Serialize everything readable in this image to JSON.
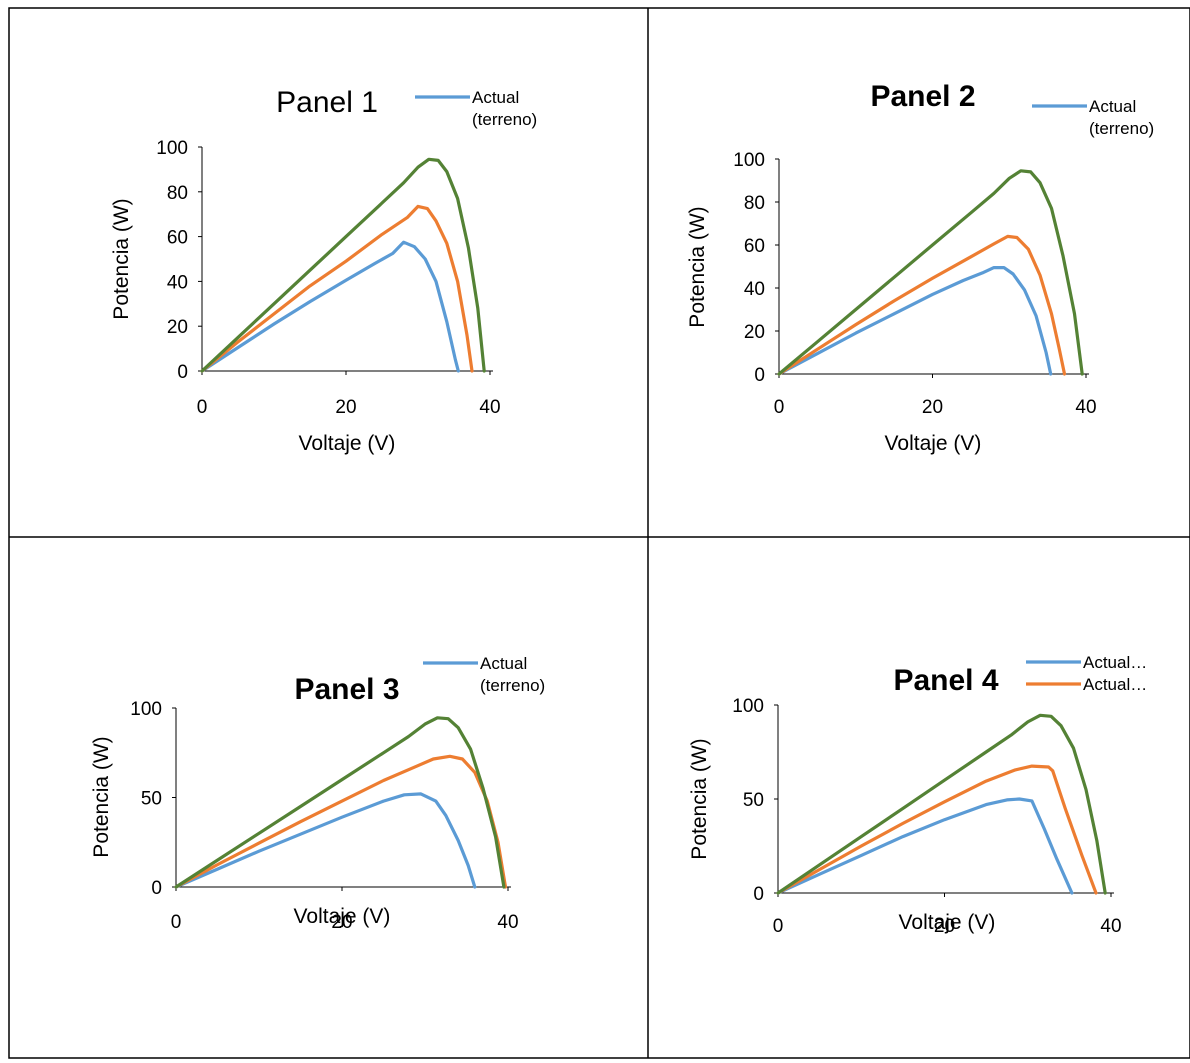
{
  "colors": {
    "blue": "#5B9BD5",
    "orange": "#ED7D31",
    "green": "#548235",
    "axis": "#000000",
    "border": "#000000"
  },
  "chart_data": [
    {
      "type": "line",
      "title": "Panel 1",
      "title_bold": false,
      "xlabel": "Voltaje (V)",
      "ylabel": "Potencia (W)",
      "xlim": [
        0,
        40
      ],
      "ylim": [
        0,
        100
      ],
      "xticks": [
        "0",
        "20",
        "40"
      ],
      "yticks": [
        "0",
        "20",
        "40",
        "60",
        "80",
        "100"
      ],
      "legend": [
        {
          "lines": [
            "Actual",
            "(terreno)"
          ],
          "color": "#5B9BD5"
        }
      ],
      "series": [
        {
          "color": "#5B9BD5",
          "x": [
            0,
            5,
            10,
            15,
            20,
            24,
            26.5,
            28,
            29.5,
            31,
            32.5,
            34,
            35.2,
            35.6
          ],
          "y": [
            0,
            10.5,
            21,
            31,
            40.5,
            48,
            52.5,
            57.5,
            55.5,
            50,
            40,
            22,
            5,
            0
          ]
        },
        {
          "color": "#ED7D31",
          "x": [
            0,
            5,
            10,
            15,
            20,
            25,
            28.5,
            30,
            31.3,
            32.5,
            34,
            35.5,
            36.8,
            37.5
          ],
          "y": [
            0,
            13,
            25.5,
            38,
            49,
            61,
            68.5,
            73.5,
            72.5,
            67,
            57,
            40,
            16,
            0
          ]
        },
        {
          "color": "#548235",
          "x": [
            0,
            5,
            10,
            15,
            20,
            25,
            28,
            30,
            31.5,
            32.8,
            34,
            35.5,
            37,
            38.3,
            39.2
          ],
          "y": [
            0,
            15,
            30,
            45,
            60,
            75,
            84,
            91,
            94.5,
            94,
            89,
            77,
            55,
            28,
            0
          ]
        }
      ]
    },
    {
      "type": "line",
      "title": "Panel 2",
      "title_bold": true,
      "xlabel": "Voltaje (V)",
      "ylabel": "Potencia (W)",
      "xlim": [
        0,
        40
      ],
      "ylim": [
        0,
        100
      ],
      "xticks": [
        "0",
        "20",
        "40"
      ],
      "yticks": [
        "0",
        "20",
        "40",
        "60",
        "80",
        "100"
      ],
      "legend": [
        {
          "lines": [
            "Actual",
            "(terreno)"
          ],
          "color": "#5B9BD5"
        }
      ],
      "series": [
        {
          "color": "#5B9BD5",
          "x": [
            0,
            5,
            10,
            15,
            20,
            24,
            26.5,
            28,
            29.3,
            30.5,
            32,
            33.5,
            34.8,
            35.4
          ],
          "y": [
            0,
            9.5,
            19,
            28,
            37,
            43.5,
            47,
            49.5,
            49.5,
            46.5,
            39,
            27,
            10,
            0
          ]
        },
        {
          "color": "#ED7D31",
          "x": [
            0,
            5,
            10,
            15,
            20,
            25,
            28,
            29.8,
            31,
            32.5,
            34,
            35.5,
            36.5,
            37.2
          ],
          "y": [
            0,
            11.5,
            23,
            34,
            44.5,
            54.5,
            60.5,
            64,
            63.5,
            58,
            46,
            28,
            12,
            0
          ]
        },
        {
          "color": "#548235",
          "x": [
            0,
            5,
            10,
            15,
            20,
            25,
            28,
            30,
            31.5,
            32.8,
            34,
            35.5,
            37,
            38.5,
            39.5
          ],
          "y": [
            0,
            15,
            30,
            45,
            60,
            75,
            84,
            91,
            94.5,
            94,
            89,
            77,
            55,
            28,
            0
          ]
        }
      ]
    },
    {
      "type": "line",
      "title": "Panel 3",
      "title_bold": true,
      "xlabel": "Voltaje (V)",
      "ylabel": "Potencia (W)",
      "xlim": [
        0,
        40
      ],
      "ylim": [
        0,
        100
      ],
      "xticks": [
        "0",
        "20",
        "40"
      ],
      "yticks": [
        "0",
        "50",
        "100"
      ],
      "legend": [
        {
          "lines": [
            "Actual",
            "(terreno)"
          ],
          "color": "#5B9BD5"
        }
      ],
      "series": [
        {
          "color": "#5B9BD5",
          "x": [
            0,
            5,
            10,
            15,
            20,
            25,
            27.5,
            29.5,
            31.3,
            32.5,
            34,
            35.2,
            36
          ],
          "y": [
            0,
            10,
            20,
            29.5,
            39,
            48,
            51.5,
            52,
            48,
            40,
            26,
            12,
            0
          ]
        },
        {
          "color": "#ED7D31",
          "x": [
            0,
            5,
            10,
            15,
            20,
            25,
            29,
            31,
            33,
            34.5,
            36,
            37.5,
            38.8,
            39.7
          ],
          "y": [
            0,
            12.5,
            24.5,
            36.5,
            48,
            59.5,
            67.5,
            71.5,
            73,
            71.5,
            64,
            48,
            25,
            0
          ]
        },
        {
          "color": "#548235",
          "x": [
            0,
            5,
            10,
            15,
            20,
            25,
            28,
            30,
            31.5,
            32.8,
            34,
            35.5,
            37,
            38.5,
            39.5
          ],
          "y": [
            0,
            15,
            30,
            45,
            60,
            75,
            84,
            91,
            94.5,
            94,
            89,
            77,
            55,
            28,
            0
          ]
        }
      ]
    },
    {
      "type": "line",
      "title": "Panel 4",
      "title_bold": true,
      "xlabel": "Voltaje (V)",
      "ylabel": "Potencia (W)",
      "xlim": [
        0,
        40
      ],
      "ylim": [
        0,
        100
      ],
      "xticks": [
        "0",
        "20",
        "40"
      ],
      "yticks": [
        "0",
        "50",
        "100"
      ],
      "legend": [
        {
          "lines": [
            "Actual…"
          ],
          "color": "#5B9BD5"
        },
        {
          "lines": [
            "Actual…"
          ],
          "color": "#ED7D31"
        }
      ],
      "series": [
        {
          "color": "#5B9BD5",
          "x": [
            0,
            5,
            10,
            15,
            20,
            25,
            27.5,
            29,
            30.5,
            32,
            33.5,
            35.3
          ],
          "y": [
            0,
            10,
            20,
            30,
            39,
            47,
            49.5,
            50,
            49,
            34,
            18,
            0
          ]
        },
        {
          "color": "#ED7D31",
          "x": [
            0,
            5,
            10,
            15,
            20,
            25,
            28.5,
            30.5,
            32.5,
            33,
            34.5,
            36.5,
            38.2
          ],
          "y": [
            0,
            12.5,
            25,
            37,
            48.5,
            59.5,
            65.5,
            67.5,
            67,
            65,
            45,
            20,
            0
          ]
        },
        {
          "color": "#548235",
          "x": [
            0,
            5,
            10,
            15,
            20,
            25,
            28,
            30,
            31.5,
            32.8,
            34,
            35.5,
            37,
            38.3,
            39.3
          ],
          "y": [
            0,
            15,
            30,
            45,
            60,
            75,
            84,
            91,
            94.5,
            94,
            89,
            77,
            55,
            28,
            0
          ]
        }
      ]
    }
  ]
}
